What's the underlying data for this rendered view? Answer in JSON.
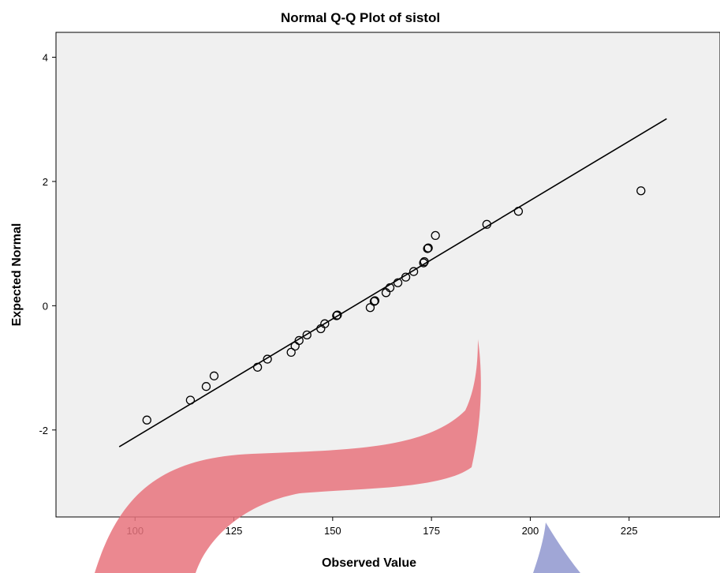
{
  "chart_data": {
    "type": "scatter",
    "title": "Normal Q-Q Plot of sistol",
    "xlabel": "Observed Value",
    "ylabel": "Expected Normal",
    "xlim": [
      80,
      248
    ],
    "ylim": [
      -3.4,
      4.4
    ],
    "xticks": [
      100,
      125,
      150,
      175,
      200,
      225
    ],
    "yticks": [
      -2,
      0,
      2,
      4
    ],
    "grid": false,
    "background_color": "#f0f0f0",
    "marker_color": "#000000",
    "points": [
      {
        "x": 103,
        "y": -1.84
      },
      {
        "x": 114,
        "y": -1.52
      },
      {
        "x": 118,
        "y": -1.3
      },
      {
        "x": 120,
        "y": -1.13
      },
      {
        "x": 131,
        "y": -0.99
      },
      {
        "x": 133.5,
        "y": -0.86
      },
      {
        "x": 139.5,
        "y": -0.75
      },
      {
        "x": 140.5,
        "y": -0.65
      },
      {
        "x": 141.5,
        "y": -0.56
      },
      {
        "x": 143.5,
        "y": -0.47
      },
      {
        "x": 147,
        "y": -0.37
      },
      {
        "x": 148,
        "y": -0.29
      },
      {
        "x": 151,
        "y": -0.16
      },
      {
        "x": 151.2,
        "y": -0.15
      },
      {
        "x": 159.5,
        "y": -0.03
      },
      {
        "x": 160.5,
        "y": 0.07
      },
      {
        "x": 160.7,
        "y": 0.08
      },
      {
        "x": 163.5,
        "y": 0.21
      },
      {
        "x": 164.5,
        "y": 0.29
      },
      {
        "x": 166.5,
        "y": 0.37
      },
      {
        "x": 168.5,
        "y": 0.46
      },
      {
        "x": 170.5,
        "y": 0.55
      },
      {
        "x": 173,
        "y": 0.69
      },
      {
        "x": 173.2,
        "y": 0.71
      },
      {
        "x": 174,
        "y": 0.92
      },
      {
        "x": 174.2,
        "y": 0.93
      },
      {
        "x": 176,
        "y": 1.13
      },
      {
        "x": 189,
        "y": 1.31
      },
      {
        "x": 197,
        "y": 1.52
      },
      {
        "x": 228,
        "y": 1.85
      }
    ],
    "reference_line": [
      {
        "x": 96,
        "y": -2.27
      },
      {
        "x": 234.5,
        "y": 3.01
      }
    ]
  }
}
